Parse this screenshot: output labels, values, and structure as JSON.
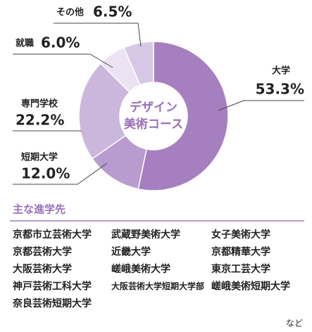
{
  "chart_data": {
    "type": "donut",
    "center_text": [
      "デザイン",
      "美術コース"
    ],
    "categories": [
      "大学",
      "短期大学",
      "専門学校",
      "就職",
      "その他"
    ],
    "values": [
      53.3,
      12.0,
      22.2,
      6.0,
      6.5
    ],
    "value_labels": [
      "53.3%",
      "12.0%",
      "22.2%",
      "6.0%",
      "6.5%"
    ],
    "colors": [
      "#a67fc0",
      "#b89bcf",
      "#cbb7dc",
      "#ebe2f2",
      "#d6c8e4"
    ]
  },
  "schools": {
    "title": "主な進学先",
    "rows": [
      [
        "京都市立芸術大学",
        "武蔵野美術大学",
        "女子美術大学"
      ],
      [
        "京都芸術大学",
        "近畿大学",
        "京都精華大学"
      ],
      [
        "大阪芸術大学",
        "嵯峨美術大学",
        "東京工芸大学"
      ],
      [
        "神戸芸術工科大学",
        "大阪芸術大学短期大学部",
        "嵯峨美術短期大学"
      ],
      [
        "奈良芸術短期大学"
      ]
    ],
    "note": "など"
  }
}
